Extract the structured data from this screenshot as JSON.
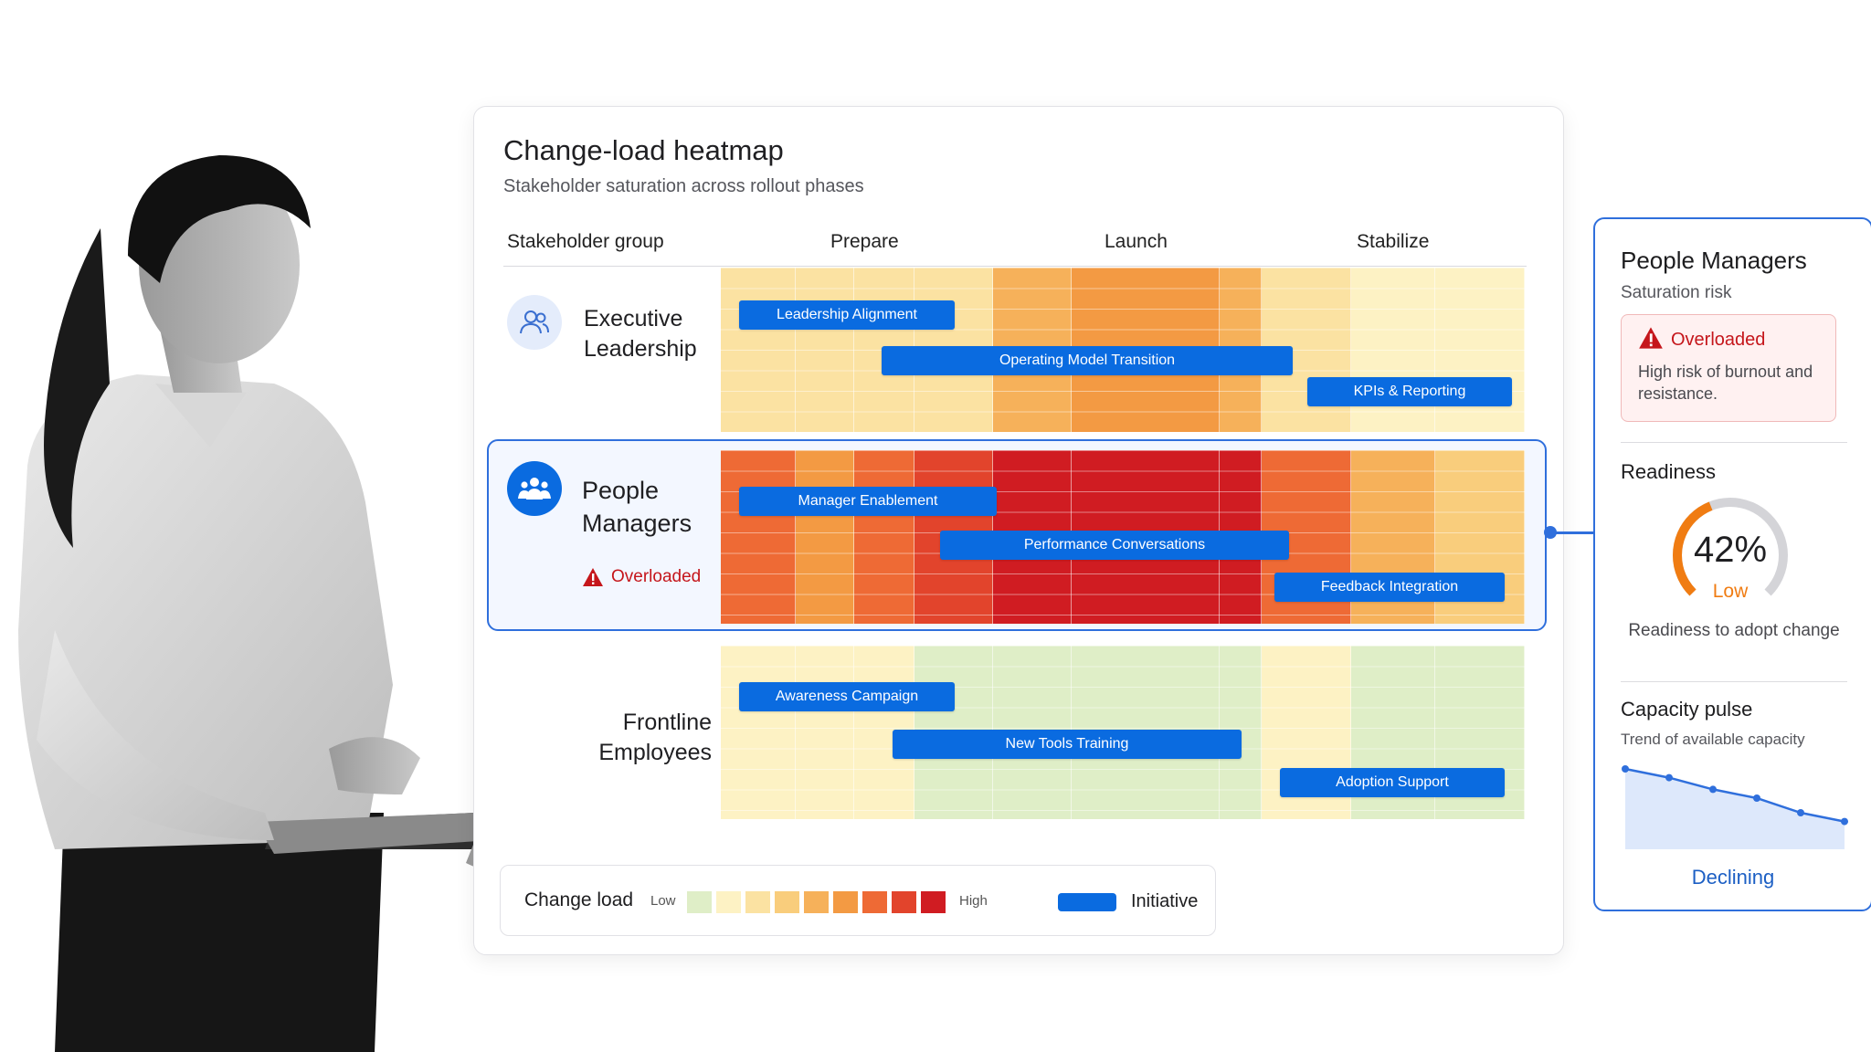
{
  "heatmap": {
    "title": "Change-load heatmap",
    "subtitle": "Stakeholder saturation across rollout phases",
    "stakeholder_header": "Stakeholder group",
    "phases": [
      "Prepare",
      "Launch",
      "Stabilize"
    ],
    "rows": [
      {
        "label_line1": "Executive",
        "label_line2": "Leadership",
        "icon": "people-outline-icon",
        "load_levels": [
          2,
          2,
          2,
          2,
          4,
          5,
          4,
          2,
          1,
          1
        ],
        "initiatives": [
          "Leadership Alignment",
          "Operating Model Transition",
          "KPIs & Reporting"
        ]
      },
      {
        "label_line1": "People",
        "label_line2": "Managers",
        "icon": "people-group-icon",
        "status": "Overloaded",
        "load_levels": [
          6,
          5,
          6,
          7,
          9,
          9,
          9,
          6,
          4,
          3
        ],
        "initiatives": [
          "Manager Enablement",
          "Performance Conversations",
          "Feedback Integration"
        ]
      },
      {
        "label_line1": "Frontline",
        "label_line2": "Employees",
        "load_levels": [
          1,
          1,
          1,
          0,
          0,
          0,
          0,
          1,
          0,
          0
        ],
        "initiatives": [
          "Awareness Campaign",
          "New Tools Training",
          "Adoption Support"
        ]
      }
    ],
    "legend": {
      "title": "Change load",
      "low": "Low",
      "high": "High",
      "scale_colors": [
        "#dfeec7",
        "#fdf2c4",
        "#fbe2a2",
        "#f9cd7c",
        "#f6b15a",
        "#f39a43",
        "#ee6a35",
        "#e2442c",
        "#d01c22"
      ],
      "initiative_label": "Initiative"
    },
    "colors": {
      "initiative": "#0a6be0",
      "highlight": "#2f6fdc",
      "overloaded": "#c5161b"
    }
  },
  "side_panel": {
    "title": "People Managers",
    "subtitle": "Saturation risk",
    "alert_title": "Overloaded",
    "alert_desc": "High risk of burnout and resistance.",
    "readiness_heading": "Readiness",
    "readiness_value": "42%",
    "readiness_percent": 42,
    "readiness_label": "Low",
    "readiness_caption": "Readiness to adopt change",
    "capacity_heading": "Capacity pulse",
    "capacity_sub": "Trend of available capacity",
    "capacity_trend": [
      100,
      88,
      72,
      60,
      40,
      28
    ],
    "capacity_status": "Declining"
  }
}
